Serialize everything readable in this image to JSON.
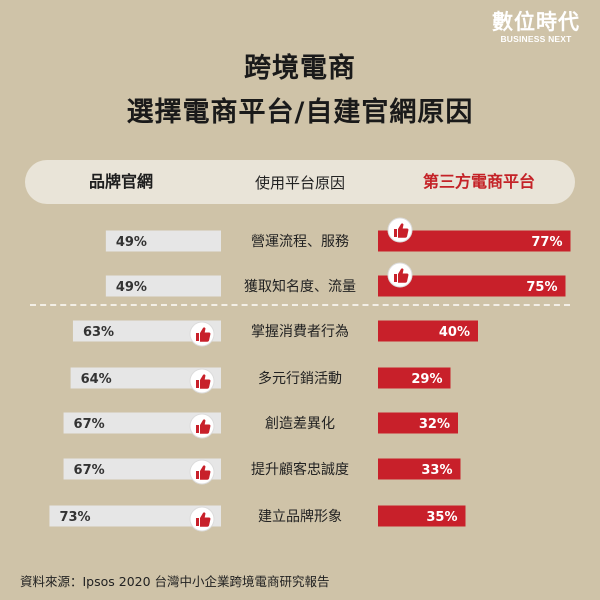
{
  "brand": {
    "name": "數位時代",
    "tagline": "BUSINESS NEXT"
  },
  "title": {
    "line1": "跨境電商",
    "line2": "選擇電商平台/自建官網原因"
  },
  "header": {
    "left": "品牌官網",
    "middle": "使用平台原因",
    "right": "第三方電商平台"
  },
  "chart_data": {
    "type": "bar",
    "title": "跨境電商 選擇電商平台/自建官網原因",
    "categories": [
      "營運流程、服務",
      "獲取知名度、流量",
      "掌握消費者行為",
      "多元行銷活動",
      "創造差異化",
      "提升顧客忠誠度",
      "建立品牌形象"
    ],
    "series": [
      {
        "name": "品牌官網",
        "values": [
          49,
          49,
          63,
          64,
          67,
          67,
          73
        ],
        "labels": [
          "49%",
          "49%",
          "63%",
          "64%",
          "67%",
          "67%",
          "73%"
        ],
        "color": "#e6e6e6"
      },
      {
        "name": "第三方電商平台",
        "values": [
          77,
          75,
          40,
          29,
          32,
          33,
          35
        ],
        "labels": [
          "77%",
          "75%",
          "40%",
          "29%",
          "32%",
          "33%",
          "35%"
        ],
        "color": "#c8202a"
      }
    ],
    "highlight": [
      "第三方電商平台",
      "第三方電商平台",
      "品牌官網",
      "品牌官網",
      "品牌官網",
      "品牌官網",
      "品牌官網"
    ],
    "thumb_icon": "thumbs-up-icon",
    "unit": "%"
  },
  "source": "資料來源：Ipsos 2020 台灣中小企業跨境電商研究報告"
}
